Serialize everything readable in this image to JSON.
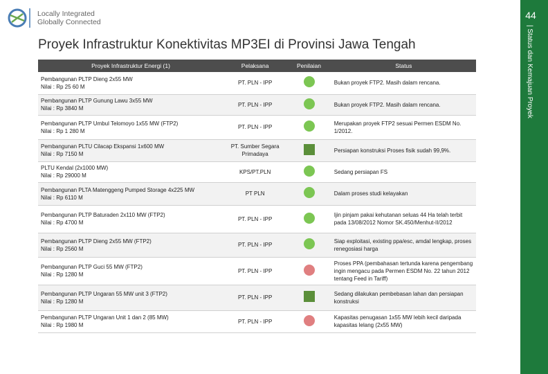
{
  "logo": {
    "line1": "Locally Integrated",
    "line2": "Globally Connected"
  },
  "page_number": "44",
  "side_label": "| Status dan Kemajuan Proyek",
  "title": "Proyek Infrastruktur Konektivitas MP3EI di Provinsi Jawa Tengah",
  "table": {
    "header": [
      "Proyek Infrastruktur Energi (1)",
      "Pelaksana",
      "Penilaian",
      "Status"
    ],
    "rows": [
      [
        "Pembangunan PLTP Dieng 2x55 MW",
        "Nilai : Rp 25 60 M",
        "PT. PLN - IPP",
        "Bukan proyek FTP2. Masih dalam rencana."
      ],
      [
        "Pembangunan PLTP Gunung Lawu 3x55 MW",
        "Nilai : Rp 3840 M",
        "PT. PLN - IPP",
        "Bukan proyek FTP2. Masih dalam rencana."
      ],
      [
        "Pembangunan PLTP Umbul Telomoyo 1x55 MW (FTP2)",
        "Nilai : Rp 1 280 M",
        "PT. PLN - IPP",
        "Merupakan proyek FTP2 sesuai Permen ESDM No. 1/2012."
      ],
      [
        "Pembangunan PLTU Cilacap Ekspansi 1x600 MW",
        "Nilai : Rp 7150 M",
        "PT. Sumber Segara Primadaya",
        "Persiapan konstruksi Proses fisik sudah 99,9%."
      ],
      [
        "PLTU Kendal (2x1000 MW)",
        "Nilai : Rp 29000 M",
        "KPS/PT.PLN",
        "Sedang persiapan FS"
      ],
      [
        "Pembangunan PLTA Matenggeng Pumped Storage 4x225 MW",
        "Nilai : Rp 6110 M",
        "PT PLN",
        "Dalam proses studi kelayakan"
      ],
      [
        "Pembangunan PLTP Baturaden 2x110 MW (FTP2)",
        "Nilai : Rp 4700 M",
        "PT. PLN - IPP",
        "Ijin pinjam pakai kehutanan seluas 44 Ha telah terbit pada 13/08/2012 Nomor SK.450/Menhut-II/2012"
      ],
      [
        "Pembangunan PLTP Dieng 2x55 MW (FTP2)",
        "Nilai : Rp 2560 M",
        "PT. PLN - IPP",
        "Siap exploitasi, existing ppa/esc, amdal lengkap, proses renegosiasi harga"
      ],
      [
        "Pembangunan PLTP Guci 55 MW (FTP2)",
        "Nilai : Rp 1280 M",
        "PT. PLN - IPP",
        "Proses PPA (pembahasan tertunda karena pengembang ingin mengacu pada Permen ESDM No. 22 tahun 2012 tentang Feed in Tariff)"
      ],
      [
        "Pembangunan PLTP Ungaran 55 MW unit 3 (FTP2)",
        "Nilai : Rp 1280 M",
        "PT. PLN - IPP",
        "Sedang dilakukan pembebasan lahan dan persiapan konstruksi"
      ],
      [
        "Pembangunan PLTP Ungaran Unit 1 dan 2 (85 MW)",
        "Nilai : Rp 1980 M",
        "PT. PLN - IPP",
        "Kapasitas penugasan 1x55 MW lebih kecil daripada kapasitas lelang (2x55 MW)"
      ]
    ]
  }
}
